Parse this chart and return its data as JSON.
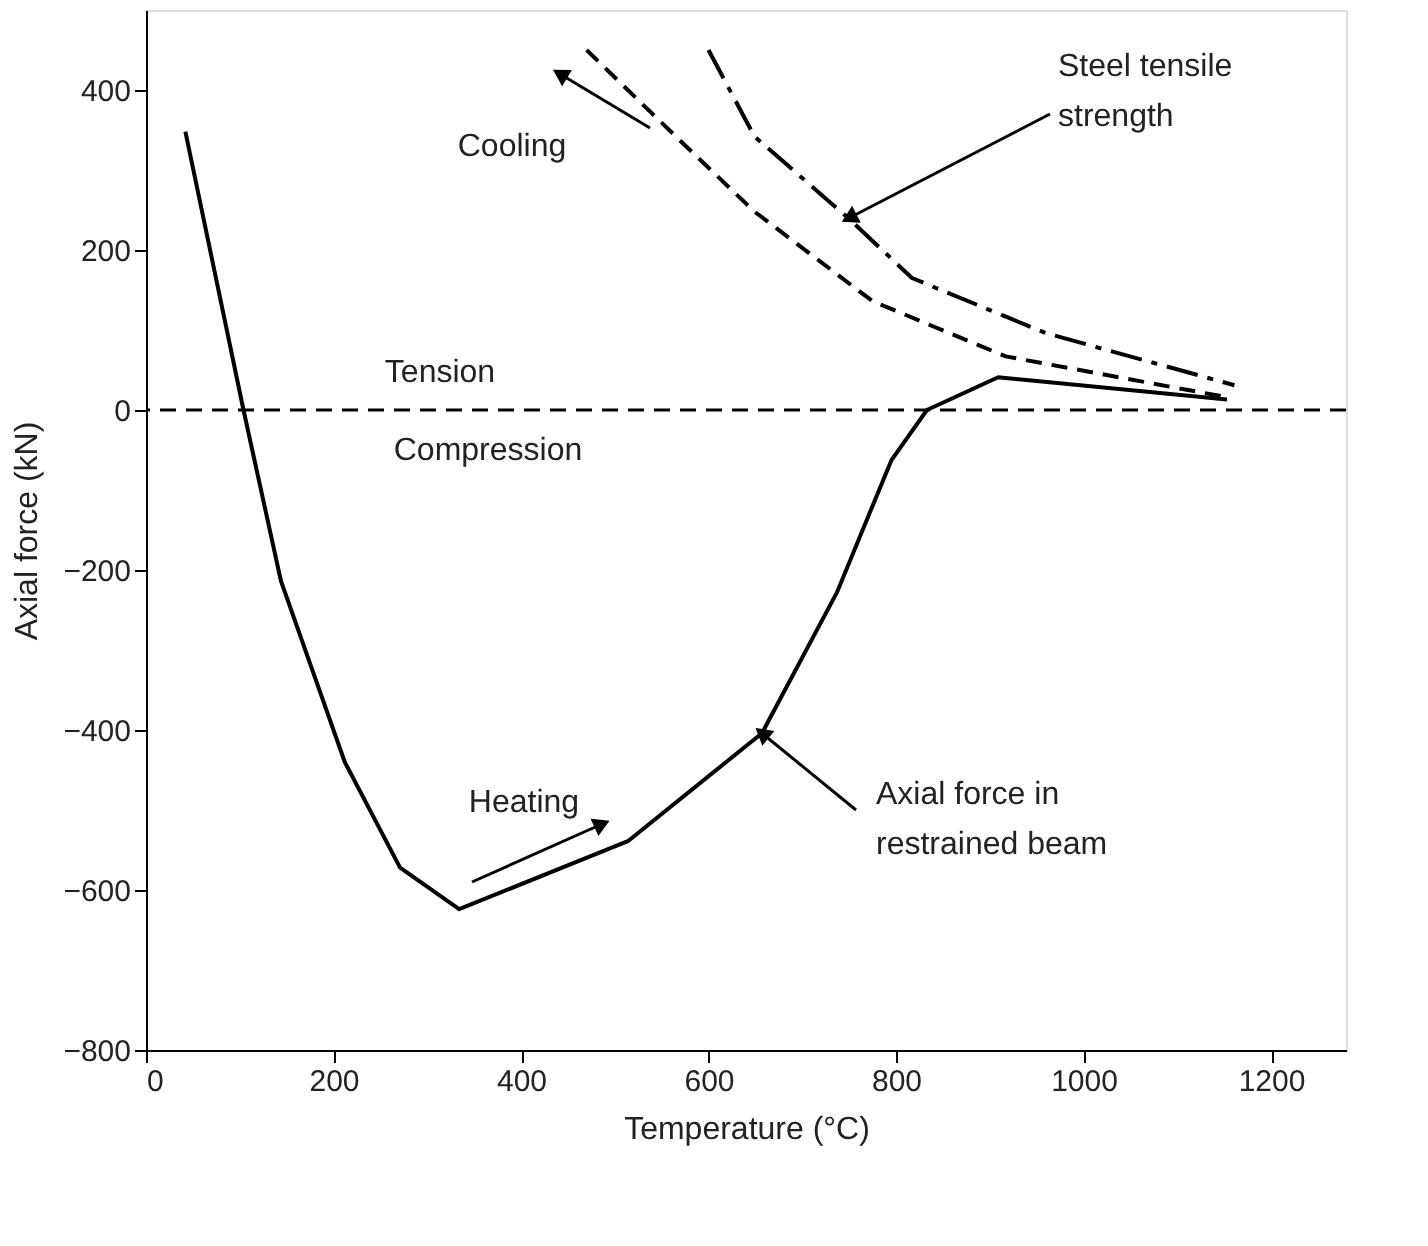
{
  "chart_data": {
    "type": "line",
    "xlabel": "Temperature (°C)",
    "ylabel": "Axial force (kN)",
    "xlim": [
      0,
      1280
    ],
    "ylim": [
      -800,
      500
    ],
    "xticks": [
      0,
      200,
      400,
      600,
      800,
      1000,
      1200
    ],
    "yticks": [
      -800,
      -600,
      -400,
      -200,
      0,
      200,
      400
    ],
    "grid": false,
    "marker": "none",
    "series": [
      {
        "color": "#000000",
        "line_style": "solid",
        "x": [
          42,
          104,
          144,
          212,
          271,
          334,
          514,
          657,
          737,
          795,
          833,
          909,
          1153
        ],
        "values": [
          348,
          0,
          -214,
          -440,
          -572,
          -624,
          -539,
          -404,
          -228,
          -63,
          0,
          41,
          13
        ]
      },
      {
        "color": "#000000",
        "line_style": "dashed",
        "x": [
          470,
          565,
          649,
          775,
          917,
          1153
        ],
        "values": [
          450,
          342,
          248,
          136,
          67,
          16
        ]
      },
      {
        "color": "#000000",
        "line_style": "dashdot",
        "x": [
          600,
          649,
          749,
          817,
          960,
          1161
        ],
        "values": [
          450,
          342,
          240,
          165,
          96,
          31
        ]
      }
    ],
    "ref_lines": [
      {
        "axis": "y",
        "value": 0,
        "color": "#000000",
        "line_style": "dashed"
      }
    ],
    "annotations": [
      "Cooling",
      "Heating",
      {
        "text": "Steel tensile strength",
        "x": 750,
        "y": 240
      },
      {
        "text": "Axial force in restrained beam",
        "x": 657,
        "y": -404
      },
      "Tension",
      "Compression"
    ]
  }
}
